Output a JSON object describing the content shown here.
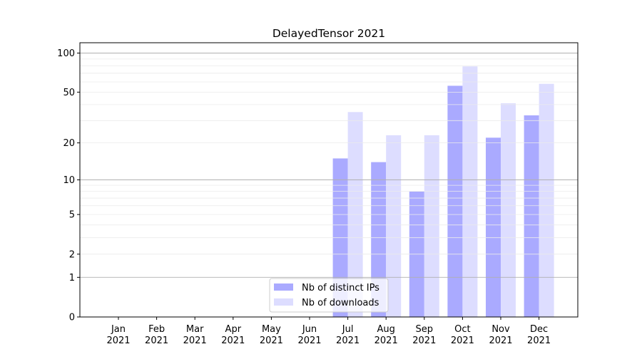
{
  "chart_data": {
    "type": "bar",
    "title": "DelayedTensor 2021",
    "xlabel": "",
    "ylabel": "",
    "yscale": "log(value+1)",
    "ylim": [
      0,
      120
    ],
    "yticks": [
      0,
      1,
      2,
      5,
      10,
      20,
      50,
      100
    ],
    "grid": true,
    "legend_placement": "lower-center",
    "categories": [
      "Jan\n2021",
      "Feb\n2021",
      "Mar\n2021",
      "Apr\n2021",
      "May\n2021",
      "Jun\n2021",
      "Jul\n2021",
      "Aug\n2021",
      "Sep\n2021",
      "Oct\n2021",
      "Nov\n2021",
      "Dec\n2021"
    ],
    "series": [
      {
        "name": "Nb of distinct IPs",
        "color": "#aaaaff",
        "values": [
          0,
          0,
          0,
          0,
          0,
          0,
          15,
          14,
          8,
          56,
          22,
          33
        ]
      },
      {
        "name": "Nb of downloads",
        "color": "#ddddff",
        "values": [
          0,
          0,
          0,
          0,
          0,
          0,
          35,
          23,
          23,
          79,
          41,
          58
        ]
      }
    ]
  }
}
